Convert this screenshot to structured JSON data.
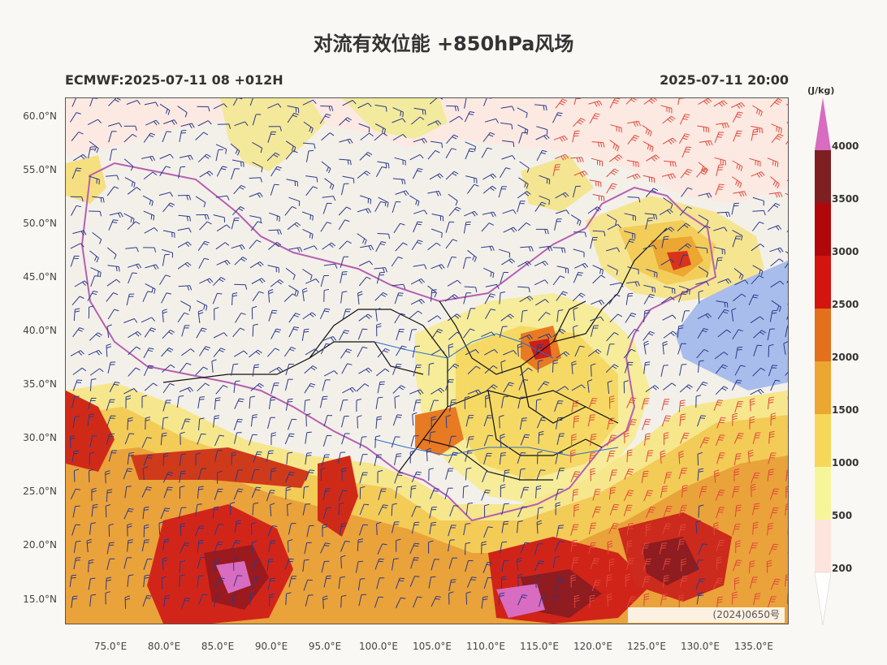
{
  "header": {
    "title": "对流有效位能 +850hPa风场",
    "model_run": "ECMWF:2025-07-11 08 +012H",
    "valid_time": "2025-07-11 20:00"
  },
  "axes": {
    "lat_labels": [
      "60.0°N",
      "55.0°N",
      "50.0°N",
      "45.0°N",
      "40.0°N",
      "35.0°N",
      "30.0°N",
      "25.0°N",
      "20.0°N",
      "15.0°N"
    ],
    "lon_labels": [
      "75.0°E",
      "80.0°E",
      "85.0°E",
      "90.0°E",
      "95.0°E",
      "100.0°E",
      "105.0°E",
      "110.0°E",
      "115.0°E",
      "120.0°E",
      "125.0°E",
      "130.0°E",
      "135.0°E"
    ]
  },
  "colorbar": {
    "unit": "(J/kg)",
    "levels": [
      "200",
      "500",
      "1000",
      "1500",
      "2000",
      "2500",
      "3000",
      "3500",
      "4000"
    ],
    "colors": [
      "#fde4dc",
      "#f7f59a",
      "#f6d75a",
      "#eca632",
      "#e2701c",
      "#d4140f",
      "#b0080a",
      "#7e1f21",
      "#d86cc0"
    ]
  },
  "watermark": {
    "text": "(2024)0650号"
  }
}
